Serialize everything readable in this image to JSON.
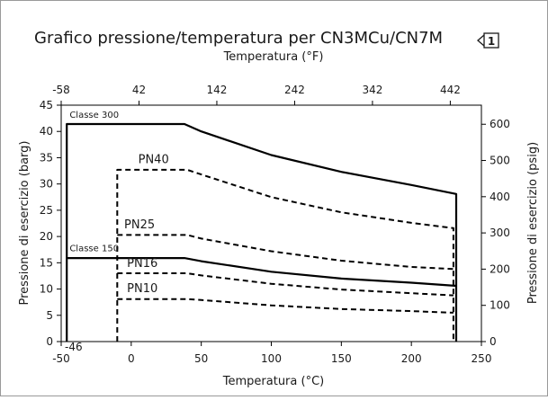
{
  "chart_data": {
    "type": "line",
    "title": "Grafico pressione/temperatura per CN3MCu/CN7M",
    "title_marker": "1",
    "xlabel": "Temperatura (°C)",
    "x2label": "Temperatura (°F)",
    "ylabel": "Pressione di esercizio (barg)",
    "y2label": "Pressione di esercizio (psig)",
    "xlim": [
      -50,
      250
    ],
    "ylim": [
      0,
      45
    ],
    "y2lim": [
      0,
      652.7
    ],
    "x_ticks": [
      -50,
      0,
      50,
      100,
      150,
      200,
      250
    ],
    "y_ticks": [
      0,
      5,
      10,
      15,
      20,
      25,
      30,
      35,
      40,
      45
    ],
    "x2_ticks": [
      -58,
      42,
      142,
      242,
      342,
      442
    ],
    "y2_ticks": [
      0,
      100,
      200,
      300,
      400,
      500,
      600
    ],
    "grid": false,
    "min_temp_label": "-46",
    "series": [
      {
        "name": "Classe 300",
        "style": "solid",
        "color": "#000000",
        "x": [
          -46,
          -46,
          38,
          50,
          100,
          150,
          200,
          232,
          232
        ],
        "y": [
          0,
          41.4,
          41.4,
          40.0,
          35.5,
          32.3,
          29.8,
          28.1,
          0
        ]
      },
      {
        "name": "PN40",
        "style": "dashed",
        "color": "#000000",
        "x": [
          -10,
          -10,
          40,
          50,
          100,
          150,
          200,
          230,
          230
        ],
        "y": [
          0,
          32.7,
          32.7,
          31.8,
          27.5,
          24.6,
          22.6,
          21.6,
          0
        ]
      },
      {
        "name": "PN25",
        "style": "dashed",
        "color": "#000000",
        "x": [
          -10,
          40,
          50,
          100,
          150,
          200,
          230
        ],
        "y": [
          20.3,
          20.3,
          19.6,
          17.2,
          15.4,
          14.2,
          13.8
        ]
      },
      {
        "name": "Classe 150",
        "style": "solid",
        "color": "#000000",
        "x": [
          -46,
          38,
          50,
          100,
          150,
          200,
          232
        ],
        "y": [
          15.9,
          15.9,
          15.3,
          13.3,
          12.0,
          11.2,
          10.6
        ]
      },
      {
        "name": "PN16",
        "style": "dashed",
        "color": "#000000",
        "x": [
          -10,
          40,
          50,
          100,
          150,
          200,
          230
        ],
        "y": [
          13.0,
          13.0,
          12.6,
          11.0,
          9.9,
          9.2,
          8.8
        ]
      },
      {
        "name": "PN10",
        "style": "dashed",
        "color": "#000000",
        "x": [
          -10,
          40,
          50,
          100,
          150,
          200,
          230
        ],
        "y": [
          8.1,
          8.1,
          7.9,
          6.9,
          6.2,
          5.8,
          5.5
        ]
      }
    ],
    "series_labels": [
      {
        "text": "Classe 300",
        "x": -44,
        "y": 42.6
      },
      {
        "text": "PN40",
        "x": 5,
        "y": 34.0
      },
      {
        "text": "PN25",
        "x": -5,
        "y": 21.6
      },
      {
        "text": "Classe 150",
        "x": -44,
        "y": 17.2
      },
      {
        "text": "PN16",
        "x": -3,
        "y": 14.2
      },
      {
        "text": "PN10",
        "x": -3,
        "y": 9.4
      }
    ]
  }
}
